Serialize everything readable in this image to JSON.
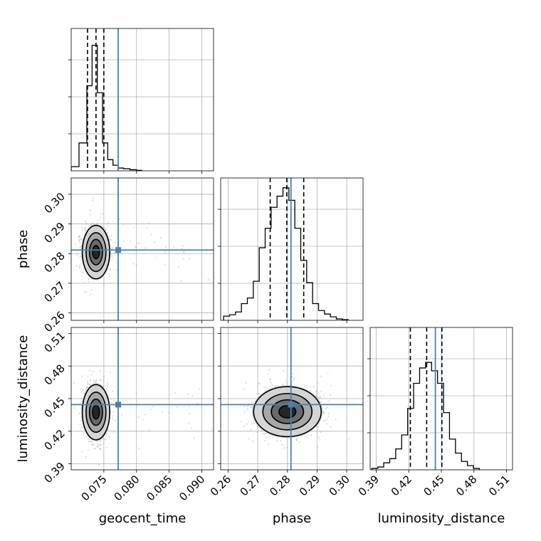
{
  "chart_data": {
    "type": "corner",
    "parameters": [
      "geocent_time",
      "phase",
      "luminosity_distance"
    ],
    "axis_labels": {
      "geocent_time": "geocent_time",
      "phase": "phase",
      "luminosity_distance": "luminosity_distance"
    },
    "ranges": {
      "geocent_time": [
        0.07,
        0.0918
      ],
      "phase": [
        0.2575,
        0.3055
      ],
      "luminosity_distance": [
        0.3845,
        0.5155
      ]
    },
    "ticks": {
      "geocent_time": [
        "0.075",
        "0.080",
        "0.085",
        "0.090"
      ],
      "phase": [
        "0.26",
        "0.27",
        "0.28",
        "0.29",
        "0.30"
      ],
      "luminosity_distance": [
        "0.39",
        "0.42",
        "0.45",
        "0.48",
        "0.51"
      ]
    },
    "truths": {
      "geocent_time": 0.0772,
      "phase": 0.2812,
      "luminosity_distance": 0.4445
    },
    "quantiles": {
      "geocent_time": [
        0.0725,
        0.0738,
        0.075
      ],
      "phase": [
        0.2742,
        0.2798,
        0.2855
      ],
      "luminosity_distance": [
        0.4215,
        0.4365,
        0.4505
      ]
    },
    "histograms": {
      "geocent_time": {
        "edges": [
          0.07,
          0.0712,
          0.0724,
          0.0732,
          0.074,
          0.0748,
          0.0756,
          0.0764,
          0.0772,
          0.078,
          0.079,
          0.08,
          0.0808
        ],
        "counts": [
          0.03,
          0.2,
          0.61,
          0.9,
          0.56,
          0.2,
          0.08,
          0.04,
          0.02,
          0.015,
          0.008,
          0.004
        ]
      },
      "phase": {
        "edges": [
          0.2585,
          0.2605,
          0.2625,
          0.2645,
          0.2665,
          0.2685,
          0.2705,
          0.2725,
          0.2745,
          0.2765,
          0.2785,
          0.2805,
          0.2825,
          0.2845,
          0.2865,
          0.2885,
          0.2905,
          0.2925,
          0.2945,
          0.2965,
          0.2985,
          0.3005
        ],
        "counts": [
          0.03,
          0.04,
          0.06,
          0.12,
          0.16,
          0.28,
          0.52,
          0.66,
          0.81,
          0.89,
          0.95,
          0.86,
          0.66,
          0.43,
          0.27,
          0.12,
          0.07,
          0.045,
          0.025,
          0.01,
          0.005
        ]
      },
      "luminosity_distance": {
        "edges": [
          0.386,
          0.3915,
          0.397,
          0.4025,
          0.408,
          0.4135,
          0.419,
          0.4245,
          0.43,
          0.4355,
          0.441,
          0.4465,
          0.452,
          0.4575,
          0.463,
          0.4685,
          0.474,
          0.4795,
          0.485
        ],
        "counts": [
          0.01,
          0.02,
          0.05,
          0.08,
          0.15,
          0.25,
          0.44,
          0.62,
          0.73,
          0.77,
          0.71,
          0.62,
          0.41,
          0.22,
          0.12,
          0.06,
          0.03,
          0.01
        ]
      }
    },
    "densities": {
      "phase_vs_geocent_time": {
        "center": [
          0.0738,
          0.2805
        ],
        "sigma": [
          0.00105,
          0.0045
        ]
      },
      "luminosity_distance_vs_geocent_time": {
        "center": [
          0.0738,
          0.4375
        ],
        "sigma": [
          0.00105,
          0.0127
        ]
      },
      "luminosity_distance_vs_phase": {
        "center": [
          0.28,
          0.438
        ],
        "sigma": [
          0.0057,
          0.0115
        ]
      }
    },
    "colors": {
      "truth": "#4682b4",
      "hist": "#000000",
      "contour": "#000000",
      "scatter": "#9a9a9a",
      "grid": "#b0b0b0"
    }
  }
}
